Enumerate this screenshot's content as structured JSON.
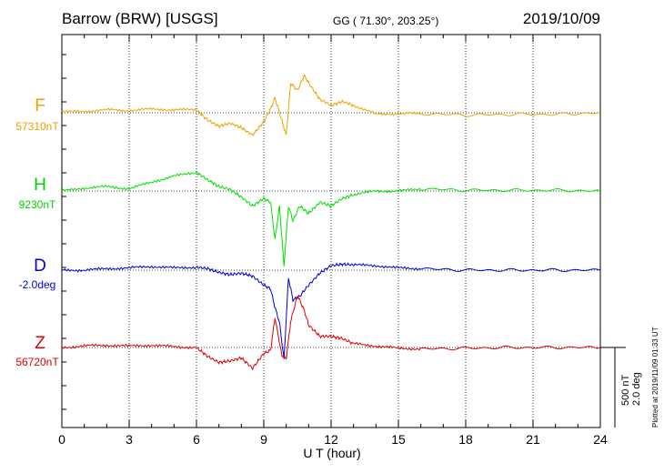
{
  "header": {
    "station": "Barrow (BRW)  [USGS]",
    "coords": "GG ( 71.30°, 203.25°)",
    "date": "2019/10/09"
  },
  "footer": {
    "plotted": "Plotted at 2019/11/09 01:33 UT"
  },
  "chart_data": {
    "type": "line",
    "xlabel": "U T (hour)",
    "xlim": [
      0,
      24
    ],
    "xticks": [
      "0",
      "3",
      "6",
      "9",
      "12",
      "15",
      "18",
      "21",
      "24"
    ],
    "scale_bar": [
      "500 nT",
      "2.0 deg"
    ],
    "colors": {
      "F": "#f0a000",
      "H": "#00e000",
      "D": "#0000d8",
      "Z": "#e00000"
    },
    "series": [
      {
        "name": "F",
        "baseline_label": "57310nT",
        "x": [
          0,
          1,
          2,
          3,
          4,
          5,
          6,
          6.5,
          7,
          7.5,
          8,
          8.5,
          9,
          9.3,
          9.5,
          9.8,
          10,
          10.2,
          10.5,
          10.8,
          11,
          11.5,
          12,
          12.5,
          13,
          14,
          15,
          16,
          18,
          20,
          22,
          24
        ],
        "y": [
          10,
          20,
          40,
          30,
          50,
          40,
          40,
          -100,
          -180,
          -140,
          -200,
          -300,
          -120,
          50,
          200,
          -100,
          -300,
          400,
          300,
          500,
          400,
          180,
          100,
          150,
          100,
          -20,
          -10,
          -10,
          -30,
          -20,
          -20,
          0
        ]
      },
      {
        "name": "H",
        "baseline_label": "9230nT",
        "x": [
          0,
          1,
          2,
          3,
          4,
          5,
          6,
          6.5,
          7,
          7.5,
          8,
          8.5,
          9,
          9.3,
          9.5,
          9.7,
          9.9,
          10.1,
          10.3,
          10.6,
          11,
          11.5,
          12,
          12.5,
          13,
          14,
          15,
          16,
          18,
          20,
          22,
          24
        ],
        "y": [
          0,
          40,
          60,
          30,
          120,
          200,
          250,
          150,
          60,
          20,
          -80,
          -200,
          -100,
          -150,
          -650,
          -200,
          -1000,
          -200,
          -400,
          -200,
          -300,
          -150,
          -200,
          -100,
          -50,
          0,
          0,
          30,
          10,
          10,
          10,
          0
        ]
      },
      {
        "name": "D",
        "baseline_label": "-2.0deg",
        "x": [
          0,
          1,
          2,
          3,
          4,
          5,
          6,
          6.5,
          7,
          7.5,
          8,
          8.5,
          9,
          9.3,
          9.5,
          9.7,
          9.9,
          10.1,
          10.3,
          10.6,
          11,
          11.5,
          12,
          12.5,
          13,
          14,
          15,
          16,
          18,
          20,
          22,
          24
        ],
        "y": [
          0,
          0,
          20,
          30,
          50,
          30,
          40,
          20,
          -30,
          -60,
          -40,
          -80,
          -200,
          -250,
          -500,
          -700,
          -1200,
          -100,
          -400,
          -350,
          -200,
          -40,
          60,
          80,
          70,
          60,
          30,
          20,
          0,
          0,
          0,
          0
        ]
      },
      {
        "name": "Z",
        "baseline_label": "56720nT",
        "x": [
          0,
          1,
          2,
          3,
          4,
          5,
          6,
          6.5,
          7,
          7.5,
          8,
          8.5,
          9,
          9.3,
          9.5,
          9.8,
          10,
          10.2,
          10.5,
          10.8,
          11,
          11.5,
          12,
          12.5,
          13,
          14,
          15,
          16,
          18,
          20,
          22,
          24
        ],
        "y": [
          0,
          20,
          30,
          20,
          30,
          10,
          0,
          -120,
          -200,
          -180,
          -140,
          -280,
          -80,
          -40,
          400,
          -100,
          -150,
          350,
          700,
          500,
          300,
          150,
          150,
          120,
          50,
          20,
          -10,
          -20,
          -10,
          0,
          0,
          0
        ]
      }
    ]
  }
}
